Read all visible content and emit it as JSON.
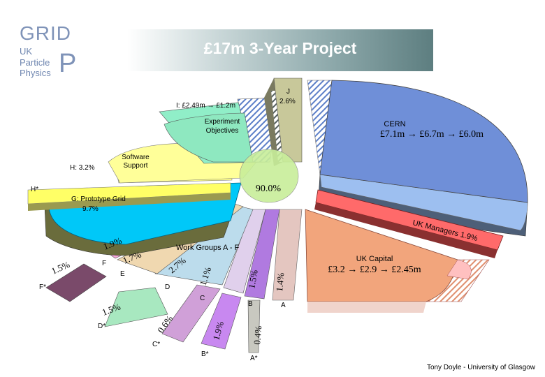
{
  "logo": {
    "grid": "GRID",
    "line1": "UK",
    "line2": "Particle",
    "line3": "Physics",
    "pp": "P"
  },
  "title": "£17m  3-Year Project",
  "credit": "Tony Doyle - University of Glasgow",
  "colors": {
    "cern": "#6f8fd8",
    "cern_light": "#9dbff0",
    "cern_side": "#4d5f78",
    "capital": "#f2a57c",
    "experiment": "#8ee8c0",
    "software": "#ffff88",
    "proto": "#00c8f8",
    "proto_side": "#6a6c3c",
    "centre": "#c8ee9a",
    "j": "#c8c89a"
  },
  "chart_data": {
    "type": "pie",
    "title": "£17m  3-Year Project",
    "center_label": "90.0%",
    "slices": [
      {
        "key": "cern",
        "label": "CERN",
        "sublabel": "£7.1m → £6.7m → £6.0m"
      },
      {
        "key": "uk_managers",
        "label": "UK Managers 1.9%",
        "value": 1.9
      },
      {
        "key": "uk_capital",
        "label": "UK Capital",
        "sublabel": "£3.2 → £2.9 → £2.45m"
      },
      {
        "key": "A",
        "label": "A",
        "value": 1.4
      },
      {
        "key": "A*",
        "label": "A*",
        "value": 0.4
      },
      {
        "key": "B",
        "label": "B",
        "value": 1.5
      },
      {
        "key": "B*",
        "label": "B*",
        "value": 1.9
      },
      {
        "key": "C",
        "label": "C",
        "value": 1.1
      },
      {
        "key": "C*",
        "label": "C*",
        "value": 0.6
      },
      {
        "key": "D",
        "label": "D",
        "value": 2.7
      },
      {
        "key": "D*",
        "label": "D*",
        "value": 1.5
      },
      {
        "key": "E",
        "label": "E",
        "value": 1.7
      },
      {
        "key": "F",
        "label": "F",
        "value": 1.9
      },
      {
        "key": "F*",
        "label": "F*",
        "value": 1.5
      },
      {
        "key": "G",
        "label": "G: Prototype Grid",
        "value": 9.7
      },
      {
        "key": "H*",
        "label": "H*"
      },
      {
        "key": "H",
        "label": "H: 3.2%",
        "value": 3.2
      },
      {
        "key": "software",
        "label": "Software Support"
      },
      {
        "key": "I",
        "label": "I: £2.49m → £1.2m"
      },
      {
        "key": "experiment",
        "label": "Experiment Objectives"
      },
      {
        "key": "J",
        "label": "J",
        "value": 2.6
      }
    ],
    "annotations": {
      "work_groups": "Work Groups A - F",
      "j_value": "2.6%",
      "g_value": "9.7%",
      "pct_labels": [
        "1.9%",
        "1.7%",
        "1.5%",
        "2.7%",
        "1.1%",
        "1.5%",
        "1.4%",
        "1.5%",
        "0.6%",
        "1.9%",
        "0.4%"
      ]
    }
  }
}
